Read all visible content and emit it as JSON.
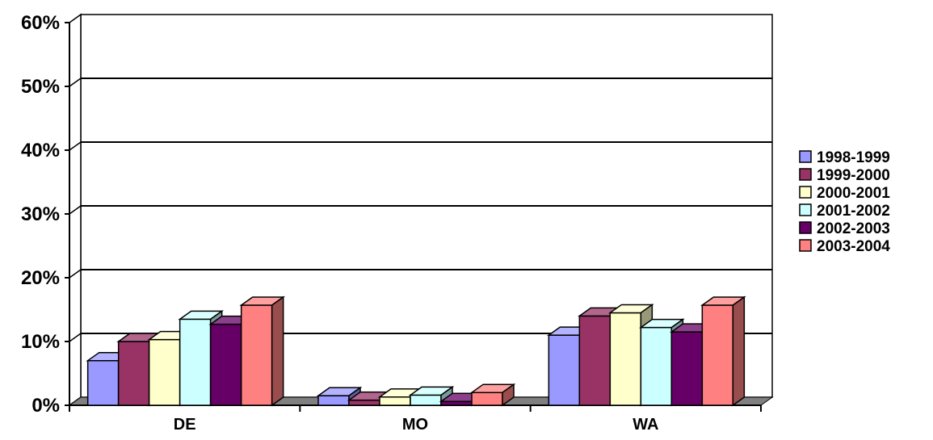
{
  "chart_data": {
    "type": "bar",
    "style": "3d-clustered-column",
    "categories": [
      "DE",
      "MO",
      "WA"
    ],
    "series": [
      {
        "name": "1998-1999",
        "values": [
          7,
          1.5,
          11
        ],
        "color": "#9999ff"
      },
      {
        "name": "1999-2000",
        "values": [
          10,
          0.8,
          14
        ],
        "color": "#993366"
      },
      {
        "name": "2000-2001",
        "values": [
          10.3,
          1.3,
          14.5
        ],
        "color": "#ffffcc"
      },
      {
        "name": "2001-2002",
        "values": [
          13.5,
          1.6,
          12.2
        ],
        "color": "#ccffff"
      },
      {
        "name": "2002-2003",
        "values": [
          12.7,
          0.6,
          11.5
        ],
        "color": "#660066"
      },
      {
        "name": "2003-2004",
        "values": [
          15.7,
          2,
          15.7
        ],
        "color": "#ff8080"
      }
    ],
    "y_ticks": [
      "0%",
      "10%",
      "20%",
      "30%",
      "40%",
      "50%",
      "60%"
    ],
    "ylim": [
      0,
      60
    ],
    "y_unit": "%",
    "grid": true,
    "legend_position": "right",
    "title": "",
    "xlabel": "",
    "ylabel": ""
  }
}
